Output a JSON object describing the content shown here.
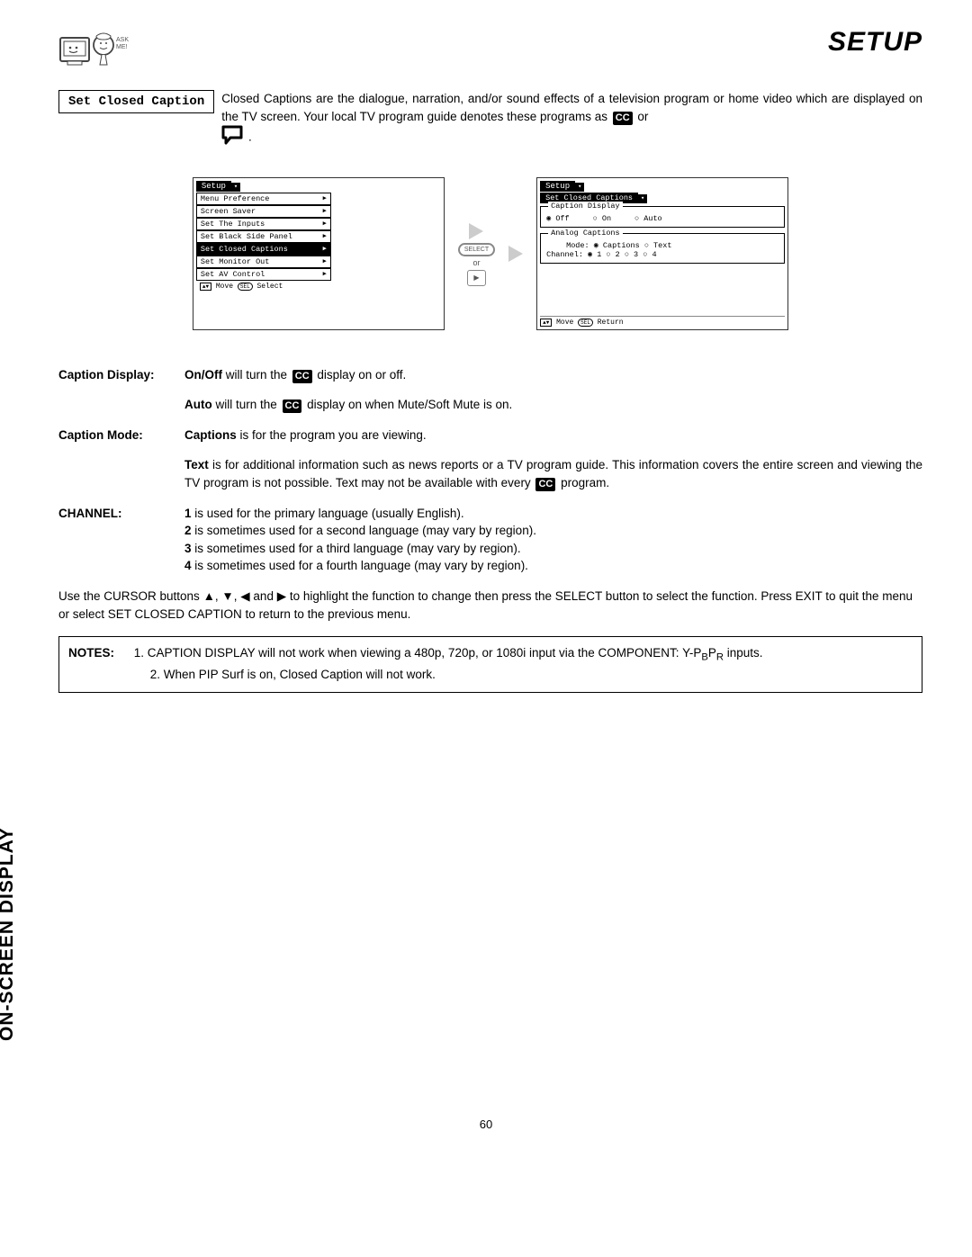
{
  "header": {
    "title": "SETUP",
    "side_tab": "ON-SCREEN DISPLAY",
    "page_number": "60"
  },
  "section_box": "Set Closed Caption",
  "intro": {
    "before_cc": "Closed Captions are the dialogue, narration, and/or sound effects of a television program or home video which are displayed on the TV screen.  Your local TV program guide denotes these programs as ",
    "cc1": "CC",
    "or": " or"
  },
  "menu1": {
    "tab": "Setup",
    "items": [
      {
        "label": "Menu Preference",
        "sel": false
      },
      {
        "label": "Screen Saver",
        "sel": false
      },
      {
        "label": "Set The Inputs",
        "sel": false
      },
      {
        "label": "Set Black Side Panel",
        "sel": false
      },
      {
        "label": "Set Closed Captions",
        "sel": true
      },
      {
        "label": "Set Monitor Out",
        "sel": false
      },
      {
        "label": "Set AV Control",
        "sel": false
      }
    ],
    "foot": "▲▼ Move  SEL Select"
  },
  "arrows": {
    "sel": "SELECT",
    "or": "or",
    "play": "▶"
  },
  "menu2": {
    "tab": "Setup",
    "sub": "Set Closed Captions",
    "display_label": "Caption Display",
    "display_opts": [
      {
        "txt": "Off",
        "on": true
      },
      {
        "txt": "On",
        "on": false
      },
      {
        "txt": "Auto",
        "on": false
      }
    ],
    "analog_label": "Analog Captions",
    "mode_line": "Mode: ◉ Captions   ○ Text",
    "chan_line": "Channel: ◉ 1  ○ 2  ○ 3  ○ 4",
    "foot": "▲▼ Move  SEL Return"
  },
  "defs": {
    "caption_display_label": "Caption Display:",
    "caption_display_1a": "On/Off",
    "caption_display_1b": " will turn the ",
    "caption_display_1c": " display on or off.",
    "caption_display_2a": "Auto",
    "caption_display_2b": " will turn the ",
    "caption_display_2c": " display on when Mute/Soft Mute is on.",
    "caption_mode_label": "Caption Mode:",
    "caption_mode_1a": "Captions",
    "caption_mode_1b": " is for the program you are viewing.",
    "caption_mode_2a": "Text",
    "caption_mode_2b": " is for additional information such as news reports or a TV program guide.  This information covers the entire screen and viewing the TV program is not possible.  Text may not be available with every ",
    "caption_mode_2c": " program.",
    "channel_label": "CHANNEL:",
    "ch1a": "1",
    "ch1b": " is used for the primary language (usually English).",
    "ch2a": "2",
    "ch2b": " is sometimes used for a second language (may vary by region).",
    "ch3a": "3",
    "ch3b": " is sometimes used for a third language (may vary by region).",
    "ch4a": "4",
    "ch4b": " is sometimes used for a fourth language (may vary by region)."
  },
  "cursor_para": "Use the CURSOR buttons ▲, ▼, ◀ and ▶ to highlight the function to change then press the SELECT button to select the function. Press EXIT to quit the menu or select SET CLOSED CAPTION to return to the previous menu.",
  "notes": {
    "label": "NOTES:",
    "n1a": "1.  CAPTION DISPLAY will not work when viewing a 480p, 720p, or 1080i input via the COMPONENT: Y-P",
    "n1b": "B",
    "n1c": "P",
    "n1d": "R",
    "n1e": " inputs.",
    "n2": "2.  When PIP Surf is on, Closed Caption will not work."
  },
  "cc": "CC"
}
